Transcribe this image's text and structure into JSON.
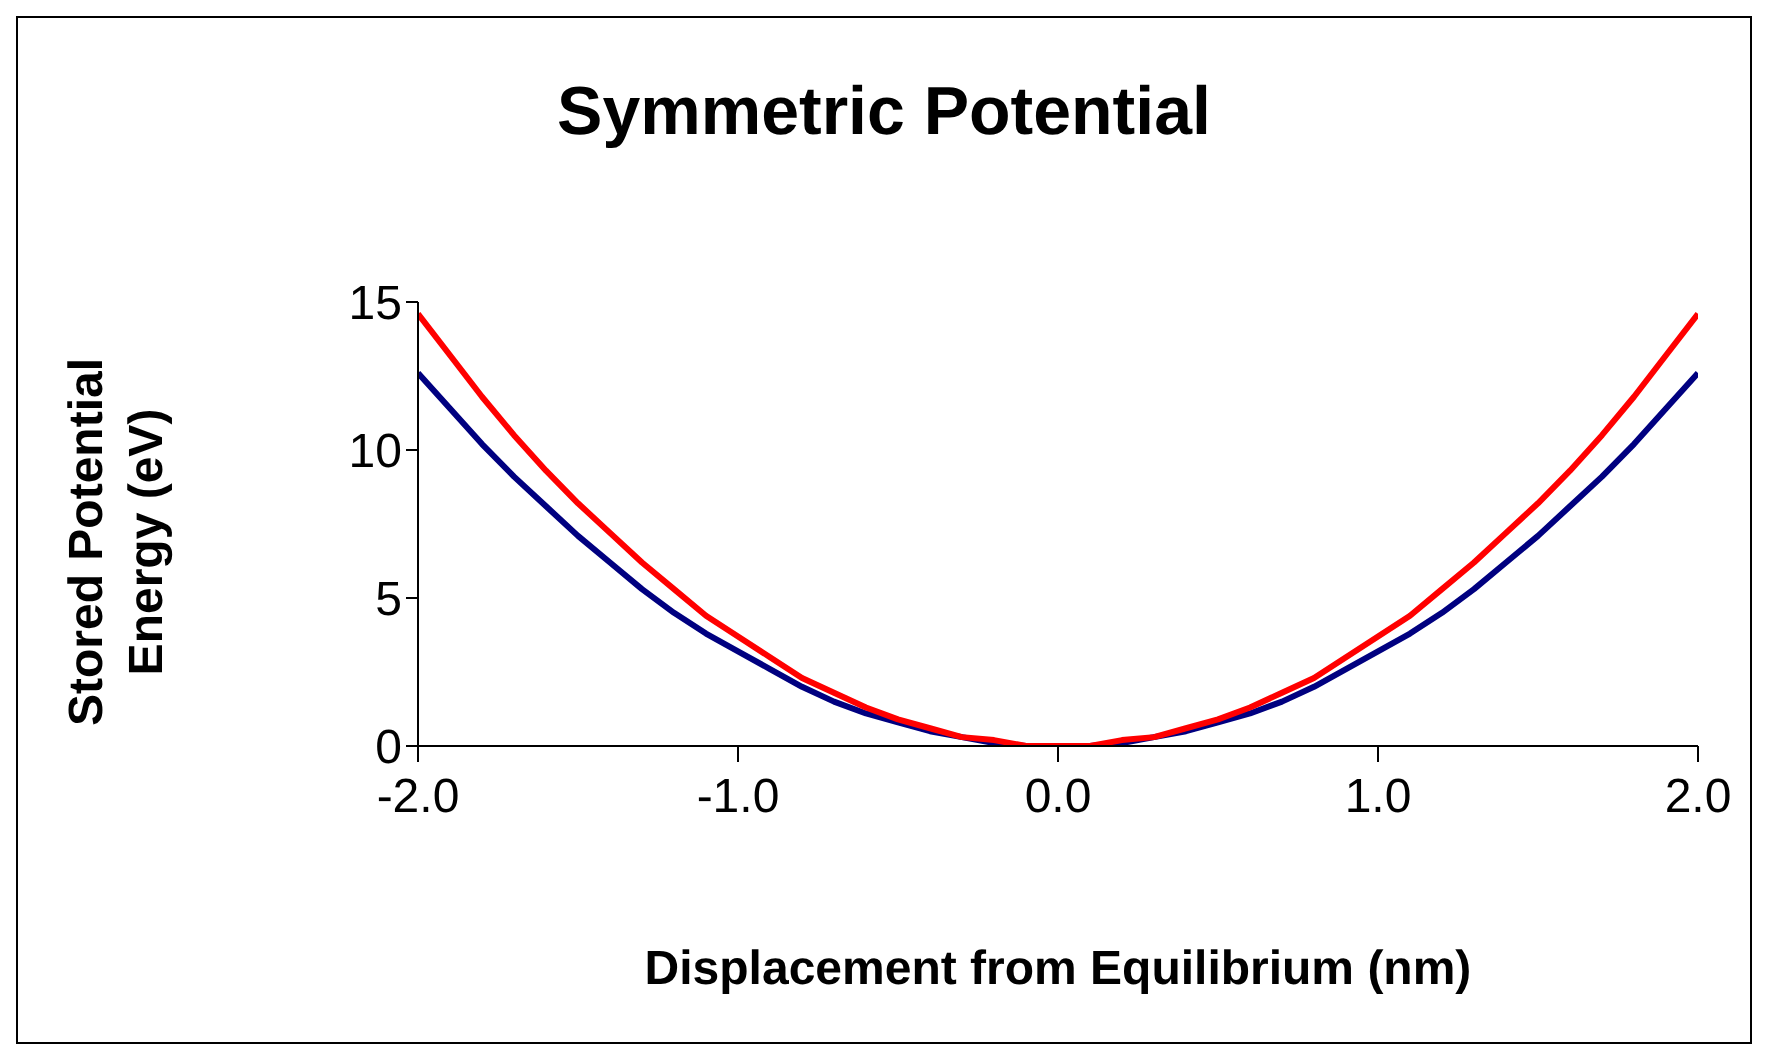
{
  "chart_data": {
    "type": "line",
    "title": "Symmetric Potential",
    "xlabel": "Displacement from Equilibrium (nm)",
    "ylabel": "Stored Potential Energy (eV)",
    "x": [
      -2.0,
      -1.9,
      -1.8,
      -1.7,
      -1.6,
      -1.5,
      -1.4,
      -1.3,
      -1.2,
      -1.1,
      -1.0,
      -0.9,
      -0.8,
      -0.7,
      -0.6,
      -0.5,
      -0.4,
      -0.3,
      -0.2,
      -0.1,
      0.0,
      0.1,
      0.2,
      0.3,
      0.4,
      0.5,
      0.6,
      0.7,
      0.8,
      0.9,
      1.0,
      1.1,
      1.2,
      1.3,
      1.4,
      1.5,
      1.6,
      1.7,
      1.8,
      1.9,
      2.0
    ],
    "series": [
      {
        "color": "#000080",
        "values": [
          12.6,
          11.4,
          10.2,
          9.1,
          8.1,
          7.1,
          6.2,
          5.3,
          4.5,
          3.8,
          3.2,
          2.6,
          2.0,
          1.5,
          1.1,
          0.8,
          0.5,
          0.3,
          0.1,
          0.0,
          0.0,
          0.0,
          0.1,
          0.3,
          0.5,
          0.8,
          1.1,
          1.5,
          2.0,
          2.6,
          3.2,
          3.8,
          4.5,
          5.3,
          6.2,
          7.1,
          8.1,
          9.1,
          10.2,
          11.4,
          12.6
        ]
      },
      {
        "color": "#ff0000",
        "values": [
          14.6,
          13.2,
          11.8,
          10.5,
          9.3,
          8.2,
          7.2,
          6.2,
          5.3,
          4.4,
          3.7,
          3.0,
          2.3,
          1.8,
          1.3,
          0.9,
          0.6,
          0.3,
          0.2,
          0.0,
          0.0,
          0.0,
          0.2,
          0.3,
          0.6,
          0.9,
          1.3,
          1.8,
          2.3,
          3.0,
          3.7,
          4.4,
          5.3,
          6.2,
          7.2,
          8.2,
          9.3,
          10.5,
          11.8,
          13.2,
          14.6
        ]
      }
    ],
    "xlim": [
      -2.0,
      2.0
    ],
    "xticks": [
      {
        "value": -2,
        "label": "-2.0"
      },
      {
        "value": -1,
        "label": "-1.0"
      },
      {
        "value": 0,
        "label": "0.0"
      },
      {
        "value": 1,
        "label": "1.0"
      },
      {
        "value": 2,
        "label": "2.0"
      }
    ],
    "ylim": [
      0,
      15
    ],
    "yticks": [
      0,
      5,
      10,
      15
    ],
    "grid": false,
    "legend": false,
    "marker": "none",
    "line_style": "solid"
  }
}
